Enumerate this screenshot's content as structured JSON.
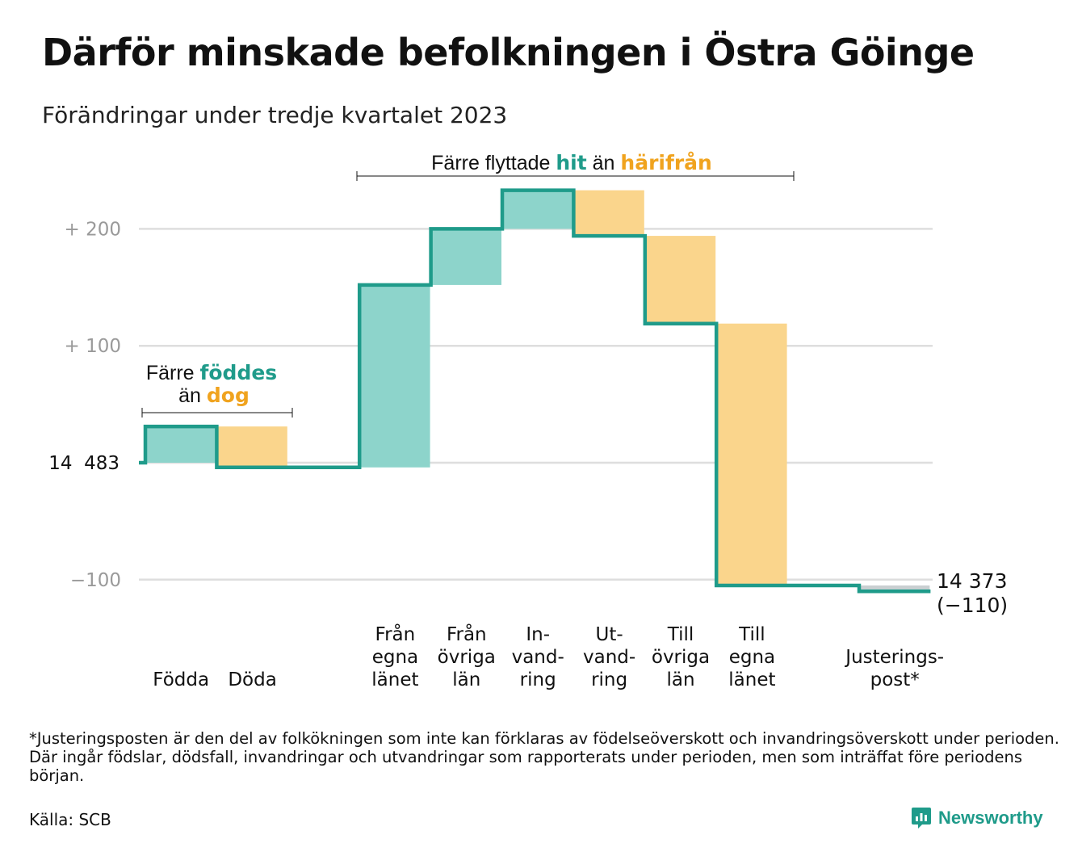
{
  "title": "Därför minskade befolkningen i Östra Göinge",
  "subtitle": "Förändringar under tredje kvartalet 2023",
  "footnote": "*Justeringsposten är den del av folkökningen som inte kan förklaras av födelseöverskott och invandringsöverskott under perioden. Där ingår födslar, dödsfall, invandringar och utvandringar som rapporterats under perioden, men som inträffat före periodens början.",
  "source": "Källa: SCB",
  "brand": "Newsworthy",
  "colors": {
    "teal": "#1f9b8a",
    "teal_fill": "#8dd4cb",
    "gold_fill": "#fad58c",
    "gold_text": "#f0a31e",
    "adjustment_fill": "#c9cfd1",
    "grid": "#dedede"
  },
  "chart_data": {
    "type": "waterfall",
    "start_value": 14483,
    "end_value": 14373,
    "end_label": "14 373",
    "end_change_label": "(−110)",
    "baseline_label": "14  483",
    "yaxis": {
      "ylim": [
        -105,
        230
      ],
      "ticks": [
        {
          "value": 200,
          "label": "+  200"
        },
        {
          "value": 100,
          "label": "+  100"
        },
        {
          "value": -100,
          "label": "−100"
        }
      ]
    },
    "steps": [
      {
        "label": [
          "Födda"
        ],
        "change": 31,
        "kind": "inflow"
      },
      {
        "label": [
          "Döda"
        ],
        "change": -35,
        "kind": "outflow"
      },
      {
        "label": [],
        "change": 0,
        "kind": "spacer"
      },
      {
        "label": [
          "Från",
          "egna",
          "länet"
        ],
        "change": 156,
        "kind": "inflow"
      },
      {
        "label": [
          "Från",
          "övriga",
          "län"
        ],
        "change": 48,
        "kind": "inflow"
      },
      {
        "label": [
          "In-",
          "vand-",
          "ring"
        ],
        "change": 33,
        "kind": "inflow"
      },
      {
        "label": [
          "Ut-",
          "vand-",
          "ring"
        ],
        "change": -39,
        "kind": "outflow"
      },
      {
        "label": [
          "Till",
          "övriga",
          "län"
        ],
        "change": -75,
        "kind": "outflow"
      },
      {
        "label": [
          "Till",
          "egna",
          "länet"
        ],
        "change": -224,
        "kind": "outflow"
      },
      {
        "label": [],
        "change": 0,
        "kind": "spacer"
      },
      {
        "label": [
          "Justerings-",
          "post*"
        ],
        "change": -5,
        "kind": "adjustment"
      }
    ],
    "annotations": {
      "births": {
        "line1_plain": "Färre ",
        "line1_teal": "föddes",
        "line2_plain": "än ",
        "line2_gold": "dog"
      },
      "migration": {
        "plain1": "Färre flyttade ",
        "teal": "hit",
        "plain2": " än ",
        "gold": "härifrån"
      }
    },
    "grid": true
  }
}
